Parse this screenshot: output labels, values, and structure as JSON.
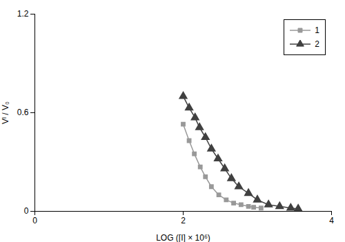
{
  "chart_data": {
    "type": "line",
    "xlabel": "LOG ([I] × 10⁶)",
    "ylabel": "Vᴵ / V₀",
    "series": [
      {
        "name": "1",
        "color": "#999999",
        "marker": "square",
        "x": [
          2.0,
          2.08,
          2.15,
          2.23,
          2.3,
          2.38,
          2.48,
          2.58,
          2.68,
          2.78,
          2.88,
          2.95,
          3.05
        ],
        "values": [
          0.53,
          0.43,
          0.35,
          0.27,
          0.21,
          0.15,
          0.1,
          0.07,
          0.05,
          0.04,
          0.03,
          0.025,
          0.02
        ]
      },
      {
        "name": "2",
        "color": "#404040",
        "marker": "triangle",
        "x": [
          2.0,
          2.08,
          2.16,
          2.22,
          2.3,
          2.38,
          2.47,
          2.56,
          2.65,
          2.75,
          2.88,
          3.0,
          3.15,
          3.3,
          3.45,
          3.55
        ],
        "values": [
          0.7,
          0.63,
          0.57,
          0.51,
          0.45,
          0.38,
          0.32,
          0.26,
          0.2,
          0.15,
          0.11,
          0.07,
          0.04,
          0.03,
          0.02,
          0.015
        ]
      }
    ],
    "xlim": [
      0,
      4
    ],
    "ylim": [
      0,
      1.2
    ],
    "xticks": [
      0,
      2,
      4
    ],
    "yticks": [
      0,
      0.6,
      1.2
    ],
    "grid": false,
    "legend": "upper right"
  }
}
